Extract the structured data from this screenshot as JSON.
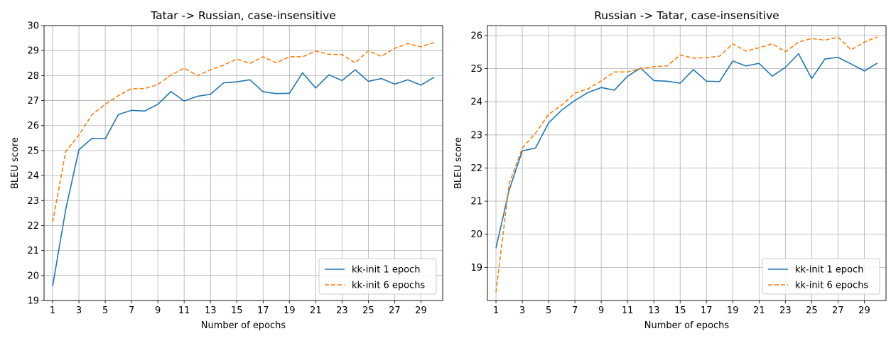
{
  "chart_data": [
    {
      "type": "line",
      "title": "Tatar -> Russian, case-insensitive",
      "xlabel": "Number of epochs",
      "ylabel": "BLEU score",
      "xlim": [
        0.35,
        30.65
      ],
      "ylim": [
        19,
        30
      ],
      "xticks": [
        "1",
        "3",
        "5",
        "7",
        "9",
        "11",
        "13",
        "15",
        "17",
        "19",
        "21",
        "23",
        "25",
        "27",
        "29"
      ],
      "yticks": [
        "19",
        "20",
        "21",
        "22",
        "23",
        "24",
        "25",
        "26",
        "27",
        "28",
        "29",
        "30"
      ],
      "grid": true,
      "legend_position": "lower-right",
      "x": [
        1,
        2,
        3,
        4,
        5,
        6,
        7,
        8,
        9,
        10,
        11,
        12,
        13,
        14,
        15,
        16,
        17,
        18,
        19,
        20,
        21,
        22,
        23,
        24,
        25,
        26,
        27,
        28,
        29,
        30
      ],
      "series": [
        {
          "name": "kk-init 1 epoch",
          "color": "#1f77b4",
          "style": "solid",
          "values": [
            19.57,
            22.65,
            25.03,
            25.49,
            25.47,
            26.44,
            26.61,
            26.58,
            26.85,
            27.36,
            26.98,
            27.17,
            27.25,
            27.71,
            27.75,
            27.83,
            27.35,
            27.28,
            27.29,
            28.11,
            27.5,
            28.03,
            27.8,
            28.23,
            27.77,
            27.88,
            27.66,
            27.83,
            27.62,
            27.93
          ]
        },
        {
          "name": "kk-init 6 epochs",
          "color": "#ff7f0e",
          "style": "dashed",
          "values": [
            22.14,
            24.97,
            25.62,
            26.44,
            26.85,
            27.2,
            27.48,
            27.48,
            27.64,
            28.02,
            28.3,
            28.0,
            28.23,
            28.42,
            28.66,
            28.49,
            28.75,
            28.51,
            28.75,
            28.75,
            28.98,
            28.85,
            28.84,
            28.51,
            28.99,
            28.77,
            29.09,
            29.28,
            29.15,
            29.33
          ]
        }
      ]
    },
    {
      "type": "line",
      "title": "Russian -> Tatar, case-insensitive",
      "xlabel": "Number of epochs",
      "ylabel": "BLEU score",
      "xlim": [
        0.35,
        30.65
      ],
      "ylim": [
        18.0,
        26.3
      ],
      "xticks": [
        "1",
        "3",
        "5",
        "7",
        "9",
        "11",
        "13",
        "15",
        "17",
        "19",
        "21",
        "23",
        "25",
        "27",
        "29"
      ],
      "yticks": [
        "19",
        "20",
        "21",
        "22",
        "23",
        "24",
        "25",
        "26"
      ],
      "grid": true,
      "legend_position": "lower-right",
      "x": [
        1,
        2,
        3,
        4,
        5,
        6,
        7,
        8,
        9,
        10,
        11,
        12,
        13,
        14,
        15,
        16,
        17,
        18,
        19,
        20,
        21,
        22,
        23,
        24,
        25,
        26,
        27,
        28,
        29,
        30
      ],
      "series": [
        {
          "name": "kk-init 1 epoch",
          "color": "#1f77b4",
          "style": "solid",
          "values": [
            19.58,
            21.33,
            22.52,
            22.6,
            23.36,
            23.75,
            24.04,
            24.28,
            24.43,
            24.35,
            24.77,
            25.02,
            24.64,
            24.62,
            24.56,
            24.97,
            24.62,
            24.61,
            25.23,
            25.08,
            25.16,
            24.77,
            25.04,
            25.45,
            24.7,
            25.29,
            25.34,
            25.14,
            24.93,
            25.17
          ]
        },
        {
          "name": "kk-init 6 epochs",
          "color": "#ff7f0e",
          "style": "dashed",
          "values": [
            18.25,
            21.52,
            22.6,
            23.05,
            23.62,
            23.9,
            24.26,
            24.39,
            24.63,
            24.9,
            24.9,
            25.0,
            25.06,
            25.08,
            25.41,
            25.32,
            25.33,
            25.38,
            25.75,
            25.53,
            25.63,
            25.75,
            25.51,
            25.8,
            25.91,
            25.86,
            25.95,
            25.57,
            25.8,
            25.96
          ]
        }
      ]
    }
  ]
}
